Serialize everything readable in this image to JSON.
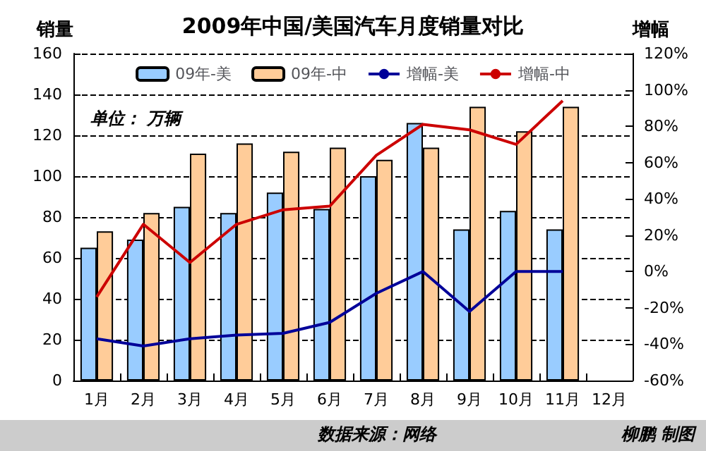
{
  "chart_data": {
    "type": "bar",
    "title": "2009年中国/美国汽车月度销量对比",
    "ylabel": "销量",
    "y2label": "增幅",
    "categories": [
      "1月",
      "2月",
      "3月",
      "4月",
      "5月",
      "6月",
      "7月",
      "8月",
      "9月",
      "10月",
      "11月",
      "12月"
    ],
    "series": [
      {
        "name": "09年-美",
        "color": "#99ccff",
        "values": [
          65,
          69,
          85,
          82,
          92,
          84,
          100,
          126,
          74,
          83,
          74,
          null
        ]
      },
      {
        "name": "09年-中",
        "color": "#ffcc99",
        "values": [
          73,
          82,
          111,
          116,
          112,
          114,
          108,
          114,
          134,
          122,
          134,
          null
        ]
      },
      {
        "name": "增幅-美",
        "type": "line",
        "axis": "y2",
        "color": "#000099",
        "values": [
          -37,
          -41,
          -37,
          -35,
          -34,
          -28,
          -12,
          0,
          -22,
          0,
          0,
          null
        ]
      },
      {
        "name": "增幅-中",
        "type": "line",
        "axis": "y2",
        "color": "#cc0000",
        "values": [
          -14,
          26,
          5,
          26,
          34,
          36,
          64,
          81,
          78,
          70,
          94,
          null
        ]
      }
    ],
    "ylim": [
      0,
      160
    ],
    "yticks": [
      0,
      20,
      40,
      60,
      80,
      100,
      120,
      140,
      160
    ],
    "y2lim": [
      -60,
      120
    ],
    "y2ticks": [
      {
        "value": -60,
        "label": "-60%"
      },
      {
        "value": -40,
        "label": "-40%"
      },
      {
        "value": -20,
        "label": "-20%"
      },
      {
        "value": 0,
        "label": "0%"
      },
      {
        "value": 20,
        "label": "20%"
      },
      {
        "value": 40,
        "label": "40%"
      },
      {
        "value": 60,
        "label": "60%"
      },
      {
        "value": 80,
        "label": "80%"
      },
      {
        "value": 100,
        "label": "100%"
      },
      {
        "value": 120,
        "label": "120%"
      }
    ],
    "grid": "y",
    "legend": "top",
    "marker": "none",
    "line_style": "solid",
    "annotations": [
      "单位： 万辆",
      "数据来源：网络",
      "柳鹏 制图"
    ]
  }
}
